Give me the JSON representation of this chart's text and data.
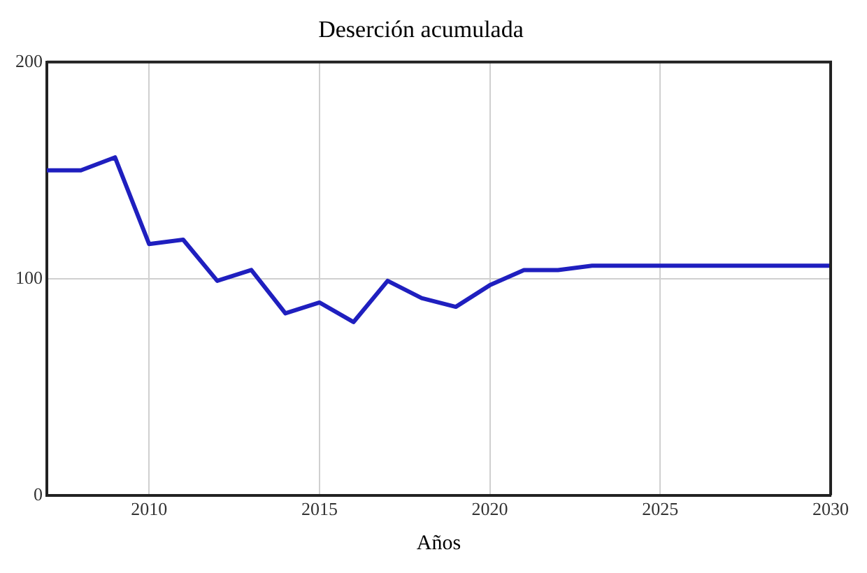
{
  "chart_data": {
    "type": "line",
    "title": "Deserción acumulada",
    "xlabel": "Años",
    "x": [
      2007,
      2008,
      2009,
      2010,
      2011,
      2012,
      2013,
      2014,
      2015,
      2016,
      2017,
      2018,
      2019,
      2020,
      2021,
      2022,
      2023,
      2024,
      2025,
      2026,
      2027,
      2028,
      2029,
      2030
    ],
    "series": [
      {
        "color": "#1f1fbf",
        "values": [
          150,
          150,
          156,
          116,
          118,
          99,
          104,
          84,
          89,
          80,
          99,
          91,
          87,
          97,
          104,
          104,
          106,
          106,
          106,
          106,
          106,
          106,
          106,
          106
        ]
      }
    ],
    "xlim": [
      2007,
      2030
    ],
    "xticks": [
      2010,
      2015,
      2020,
      2025,
      2030
    ],
    "ylim": [
      0,
      200
    ],
    "yticks": [
      0,
      100,
      200
    ],
    "grid": true,
    "legend": false,
    "marker": "none",
    "line_style": "solid"
  }
}
